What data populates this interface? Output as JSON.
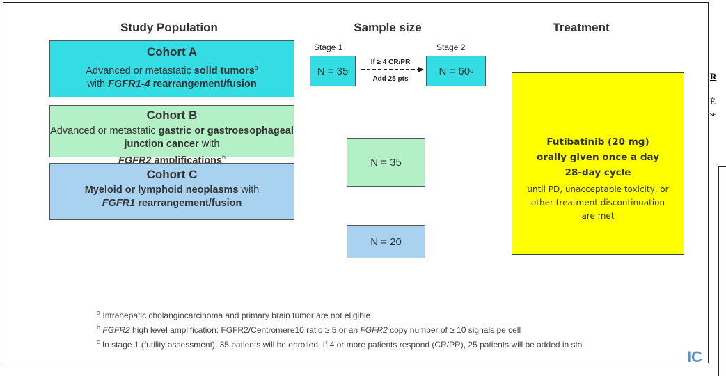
{
  "headers": [
    "Study Population",
    "Sample size",
    "Treatment"
  ],
  "cohorts": [
    {
      "title": "Cohort A",
      "description": [
        "Advanced or metastatic ",
        "solid tumors",
        "a",
        " with ",
        "FGFR1-4",
        " rearrangement/fusion"
      ]
    },
    {
      "title": "Cohort B",
      "description": [
        "Advanced or metastatic ",
        "gastric or gastroesophageal junction cancer",
        " with ",
        "FGFR2",
        " amplifications",
        "b"
      ],
      "sample_size": "N = 35"
    },
    {
      "title": "Cohort C",
      "description": [
        "Myeloid or lymphoid neoplasms",
        " with ",
        "FGFR1",
        " rearrangement/fusion"
      ],
      "sample_size": "N = 20"
    }
  ],
  "stage_design": {
    "stage1_label": "Stage 1",
    "stage1_size": "N = 35",
    "condition": "If ≥ 4 CR/PR",
    "addition": "Add 25 pts",
    "stage2_label": "Stage 2",
    "stage2_size": "N = 60",
    "stage2_note": "c"
  },
  "treatment": {
    "drug": "Futibatinib (20 mg)",
    "schedule": "orally given once a day",
    "cycle": "28-day cycle",
    "duration": "until PD, unacceptable toxicity, or other treatment discontinuation are met"
  },
  "footnotes": [
    {
      "marker": "a",
      "text": [
        "Intrahepatic cholangiocarcinoma and primary brain tumor are not eligible"
      ]
    },
    {
      "marker": "b",
      "text": [
        "FGFR2",
        " high level amplification: FGFR2/Centromere10 ratio ≥ 5 or an ",
        "FGFR2",
        " copy number of ≥ 10 signals pe cell"
      ]
    },
    {
      "marker": "c",
      "text": [
        "In stage 1 (futility assessment), 35 patients will be enrolled. If 4 or more patients respond (CR/PR), 25 patients will be added in sta"
      ]
    }
  ],
  "side_panel": {
    "heading": "R",
    "line1": "É",
    "line2": "se",
    "logo": "IC"
  }
}
